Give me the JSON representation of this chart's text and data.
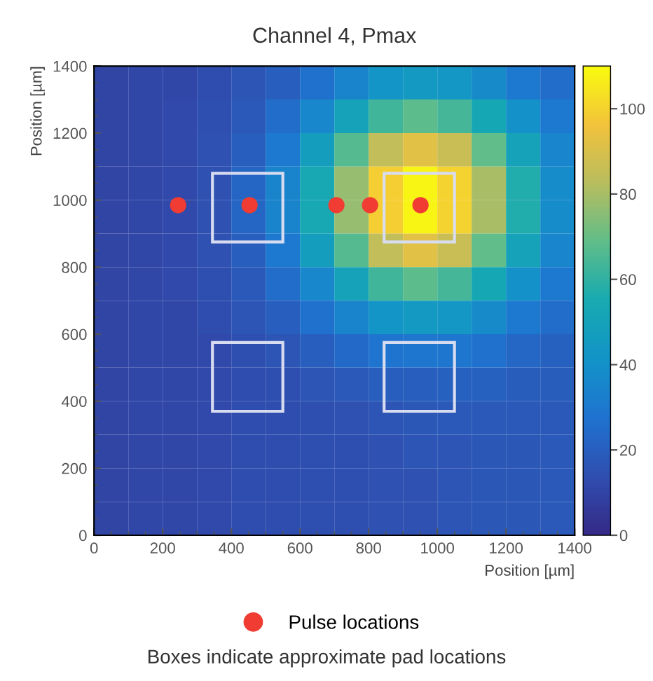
{
  "chart_data": {
    "type": "heatmap",
    "title": "Channel 4, Pmax",
    "xlabel": "Position [µm]",
    "ylabel": "Position [µm]",
    "xlim": [
      0,
      1400
    ],
    "ylim": [
      0,
      1400
    ],
    "xticks": [
      0,
      200,
      400,
      600,
      800,
      1000,
      1200,
      1400
    ],
    "yticks": [
      0,
      200,
      400,
      600,
      800,
      1000,
      1200,
      1400
    ],
    "clim": [
      0,
      110
    ],
    "cticks": [
      0,
      20,
      40,
      60,
      80,
      100
    ],
    "cells": [
      [
        10,
        11,
        11,
        13,
        16,
        20,
        27,
        34,
        42,
        45,
        43,
        37,
        30,
        25
      ],
      [
        10,
        11,
        12,
        14,
        18,
        25,
        36,
        50,
        63,
        68,
        64,
        53,
        40,
        30
      ],
      [
        10,
        11,
        12,
        15,
        20,
        30,
        47,
        67,
        85,
        92,
        86,
        69,
        50,
        35
      ],
      [
        10,
        11,
        12,
        15,
        22,
        34,
        54,
        77,
        99,
        108,
        100,
        80,
        57,
        38
      ],
      [
        10,
        11,
        12,
        15,
        22,
        34,
        54,
        77,
        99,
        108,
        100,
        80,
        57,
        38
      ],
      [
        10,
        11,
        12,
        15,
        20,
        30,
        47,
        67,
        85,
        92,
        86,
        69,
        50,
        35
      ],
      [
        10,
        11,
        12,
        14,
        18,
        25,
        36,
        50,
        63,
        68,
        64,
        53,
        40,
        30
      ],
      [
        10,
        11,
        11,
        13,
        16,
        20,
        27,
        34,
        42,
        45,
        43,
        37,
        30,
        25
      ],
      [
        10,
        11,
        11,
        12,
        14,
        16,
        20,
        24,
        28,
        29,
        29,
        27,
        23,
        21
      ],
      [
        10,
        11,
        11,
        12,
        13,
        14,
        16,
        18,
        20,
        20,
        21,
        21,
        19,
        19
      ],
      [
        10,
        11,
        11,
        12,
        13,
        13,
        14,
        15,
        16,
        17,
        18,
        18,
        18,
        18
      ],
      [
        10,
        11,
        11,
        12,
        13,
        13,
        14,
        14,
        15,
        16,
        16,
        17,
        17,
        18
      ],
      [
        10,
        11,
        11,
        12,
        13,
        13,
        14,
        14,
        15,
        15,
        16,
        17,
        17,
        18
      ],
      [
        10,
        11,
        11,
        12,
        13,
        13,
        14,
        14,
        15,
        15,
        16,
        17,
        17,
        18
      ]
    ],
    "series": [
      {
        "name": "Pulse locations",
        "type": "scatter",
        "color": "#f03c32",
        "x": [
          245,
          453,
          706,
          804,
          951
        ],
        "values": [
          985,
          985,
          985,
          985,
          985
        ]
      }
    ],
    "marker": "circle",
    "legend": "bottom",
    "grid": false,
    "annotations": [
      "Boxes indicate approximate pad locations"
    ]
  }
}
